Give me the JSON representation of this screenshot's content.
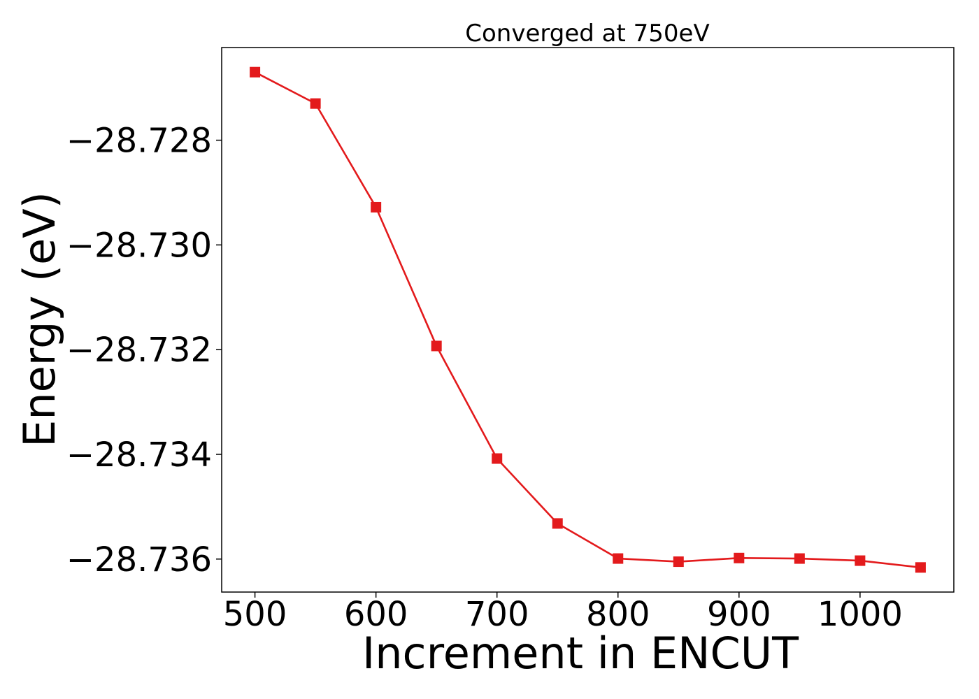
{
  "chart_data": {
    "type": "line",
    "title": "Converged at 750eV",
    "xlabel": "Increment in ENCUT",
    "ylabel": "Energy (eV)",
    "x": [
      500,
      550,
      600,
      650,
      700,
      750,
      800,
      850,
      900,
      950,
      1000,
      1050
    ],
    "series": [
      {
        "color": "#e31a1c",
        "marker": "square",
        "values": [
          -28.7267,
          -28.7273,
          -28.72928,
          -28.73193,
          -28.73408,
          -28.73532,
          -28.73599,
          -28.73605,
          -28.73598,
          -28.73599,
          -28.73603,
          -28.73616
        ]
      }
    ],
    "xlim": [
      472.5,
      1077.5
    ],
    "ylim": [
      -28.73663,
      -28.72623
    ],
    "xticks": [
      500,
      600,
      700,
      800,
      900,
      1000
    ],
    "xtick_labels": [
      "500",
      "600",
      "700",
      "800",
      "900",
      "1000"
    ],
    "yticks": [
      -28.728,
      -28.73,
      -28.732,
      -28.734,
      -28.736
    ],
    "ytick_labels": [
      "−28.728",
      "−28.730",
      "−28.732",
      "−28.734",
      "−28.736"
    ],
    "grid": false,
    "legend": "none"
  }
}
